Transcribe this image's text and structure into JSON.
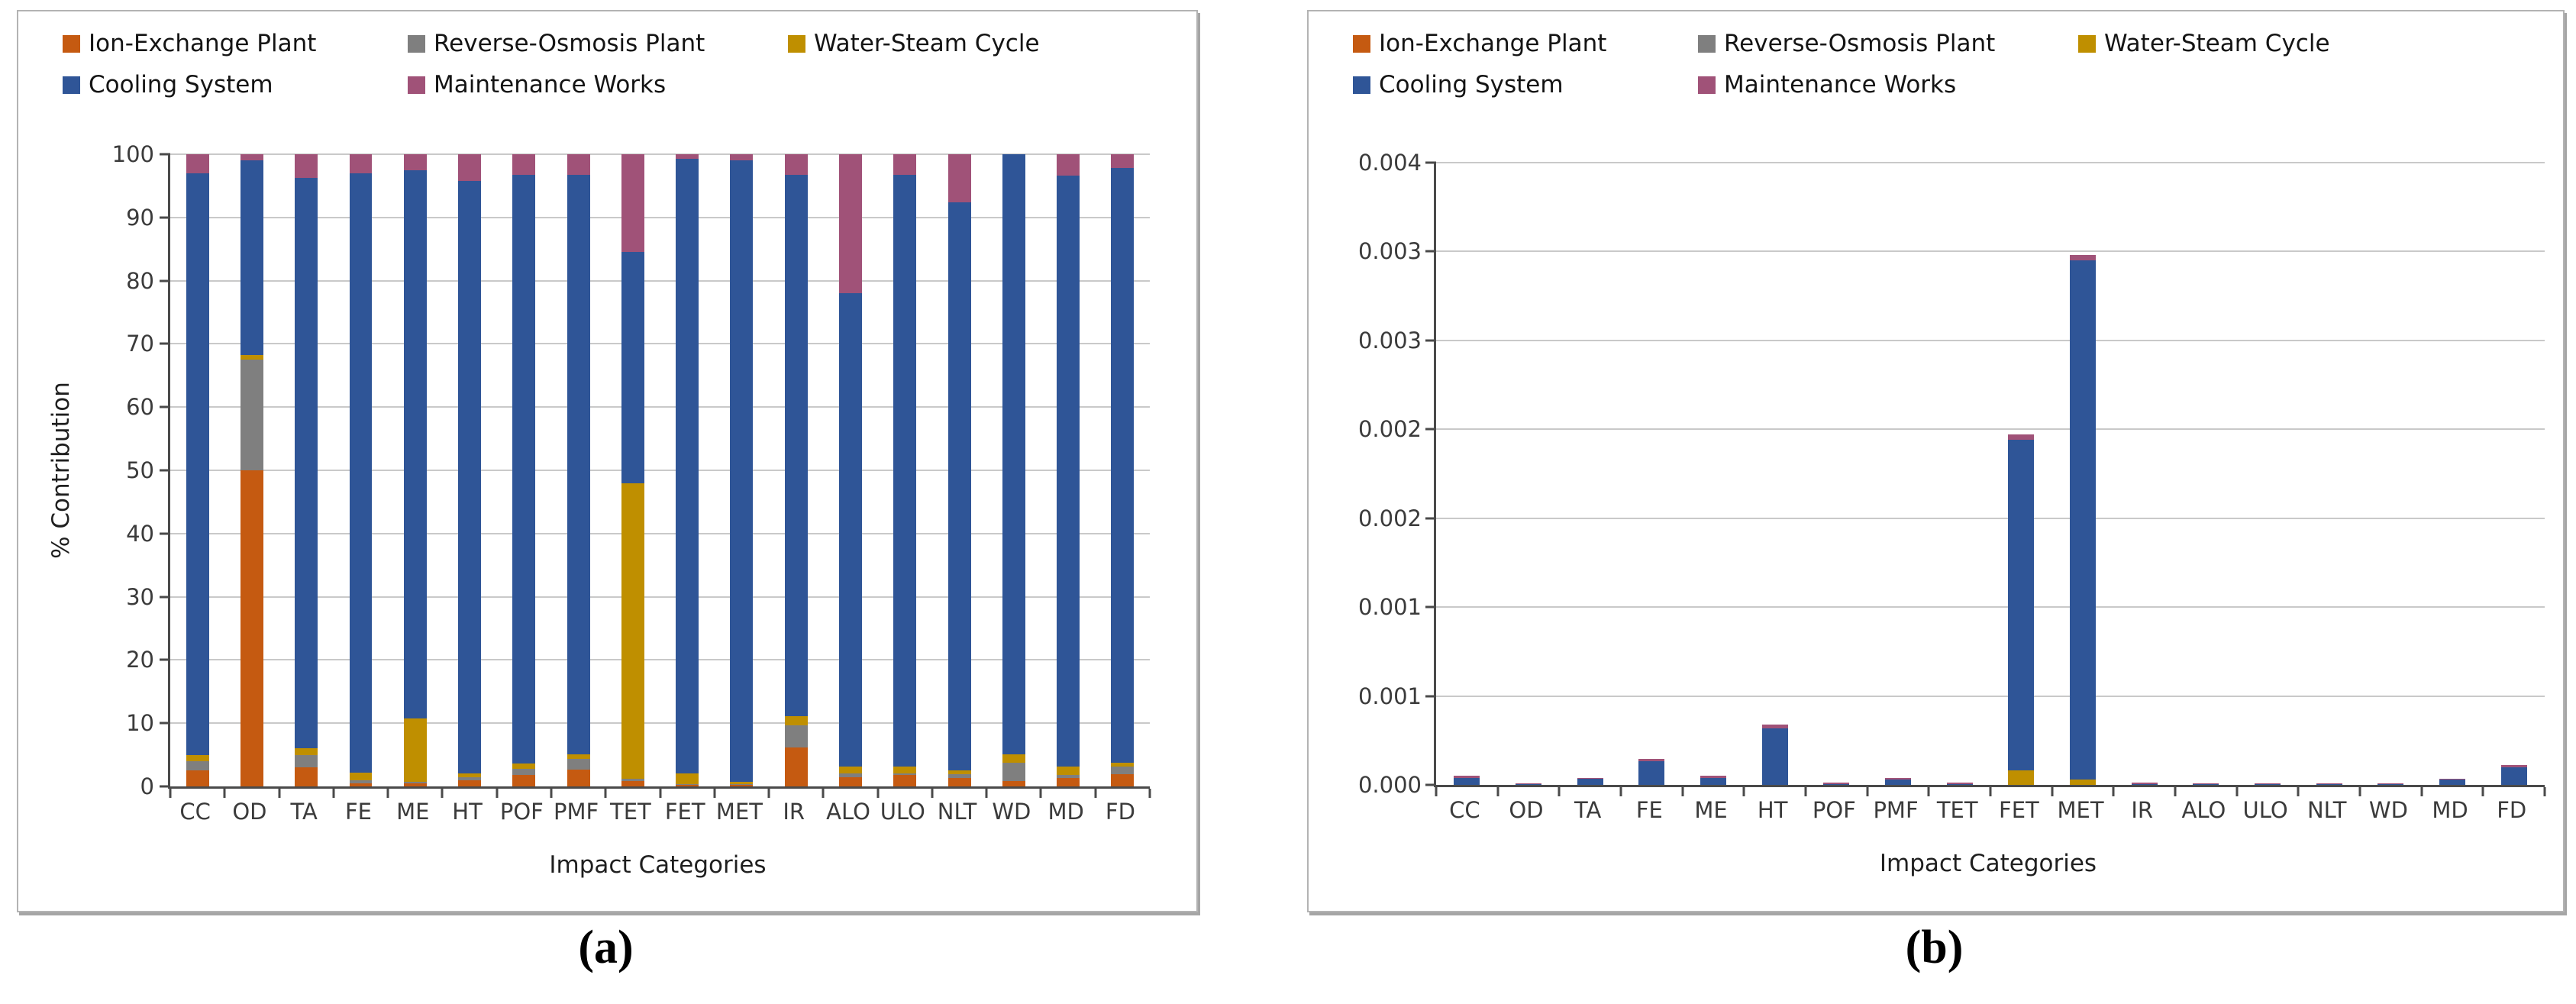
{
  "figure": {
    "captions": {
      "a": "(a)",
      "b": "(b)"
    },
    "colors": {
      "background": "#ffffff",
      "panel_border": "#b3b3b3",
      "axis": "#4a4a4a",
      "gridline": "#c9c9c9",
      "tick_text": "#3b3b3b"
    }
  },
  "chart_data": [
    {
      "id": "a",
      "type": "bar",
      "stacked": true,
      "percent_stacked": true,
      "title": "",
      "xlabel": "Impact Categories",
      "ylabel": "% Contribution",
      "ylim": [
        0,
        100
      ],
      "ytick_labels": [
        "0",
        "10",
        "20",
        "30",
        "40",
        "50",
        "60",
        "70",
        "80",
        "90",
        "100"
      ],
      "grid": true,
      "legend_position": "top-left",
      "categories": [
        "CC",
        "OD",
        "TA",
        "FE",
        "ME",
        "HT",
        "POF",
        "PMF",
        "TET",
        "FET",
        "MET",
        "IR",
        "ALO",
        "ULO",
        "NLT",
        "WD",
        "MD",
        "FD"
      ],
      "series": [
        {
          "name": "Ion-Exchange Plant",
          "color": "#C55A11",
          "values": [
            2.5,
            50,
            3,
            0.5,
            0.5,
            1,
            1.8,
            2.7,
            0.9,
            0.3,
            0.2,
            6.2,
            1.4,
            1.8,
            1.3,
            0.8,
            1.3,
            1.9
          ]
        },
        {
          "name": "Reverse-Osmosis Plant",
          "color": "#7F7F7F",
          "values": [
            1.5,
            17.5,
            2,
            0.5,
            0.2,
            0.5,
            1,
            1.7,
            0.3,
            0.1,
            0.1,
            3.5,
            0.6,
            0.3,
            0.6,
            3,
            0.5,
            1.3
          ]
        },
        {
          "name": "Water-Steam Cycle",
          "color": "#BF8F00",
          "values": [
            1,
            0.8,
            1,
            1.2,
            10,
            0.6,
            0.8,
            0.7,
            46.8,
            1.6,
            0.4,
            1.4,
            1.1,
            1,
            0.7,
            1.3,
            1.3,
            0.6
          ]
        },
        {
          "name": "Cooling System",
          "color": "#2F5597",
          "values": [
            92,
            30.7,
            90.3,
            94.8,
            86.8,
            93.7,
            93.2,
            91.6,
            36.5,
            97.3,
            98.3,
            85.7,
            74.9,
            93.7,
            89.8,
            94.9,
            93.5,
            94
          ]
        },
        {
          "name": "Maintenance Works",
          "color": "#A05278",
          "values": [
            3,
            1,
            3.7,
            3,
            2.5,
            4.2,
            3.2,
            3.3,
            15.5,
            0.7,
            1,
            3.2,
            22,
            3.2,
            7.6,
            0,
            3.4,
            2.2
          ]
        }
      ]
    },
    {
      "id": "b",
      "type": "bar",
      "stacked": true,
      "percent_stacked": false,
      "title": "",
      "xlabel": "Impact Categories",
      "ylabel": "",
      "ylim": [
        0,
        0.0035
      ],
      "ytick_labels": [
        "0.000",
        "0.001",
        "0.001",
        "0.002",
        "0.002",
        "0.003",
        "0.003",
        "0.004"
      ],
      "grid": true,
      "legend_position": "top-left",
      "categories": [
        "CC",
        "OD",
        "TA",
        "FE",
        "ME",
        "HT",
        "POF",
        "PMF",
        "TET",
        "FET",
        "MET",
        "IR",
        "ALO",
        "ULO",
        "NLT",
        "WD",
        "MD",
        "FD"
      ],
      "series": [
        {
          "name": "Ion-Exchange Plant",
          "color": "#C55A11",
          "values": [
            0,
            0,
            0,
            0,
            0,
            0,
            0,
            0,
            0,
            0,
            0,
            0,
            0,
            0,
            0,
            0,
            0,
            0
          ]
        },
        {
          "name": "Reverse-Osmosis Plant",
          "color": "#7F7F7F",
          "values": [
            0,
            0,
            0,
            0,
            0,
            0,
            0,
            0,
            0,
            0,
            0,
            0,
            0,
            0,
            0,
            0,
            0,
            0
          ]
        },
        {
          "name": "Water-Steam Cycle",
          "color": "#BF8F00",
          "values": [
            0,
            0,
            0,
            0,
            0,
            0,
            0,
            0,
            0,
            8e-05,
            3e-05,
            0,
            0,
            0,
            0,
            0,
            0,
            0
          ]
        },
        {
          "name": "Cooling System",
          "color": "#2F5597",
          "values": [
            4e-05,
            4e-06,
            3.5e-05,
            0.000135,
            4e-05,
            0.00032,
            5e-06,
            3e-05,
            3e-06,
            0.00186,
            0.00292,
            5e-06,
            3e-06,
            5e-06,
            5e-06,
            2e-06,
            3e-05,
            0.0001
          ]
        },
        {
          "name": "Maintenance Works",
          "color": "#A05278",
          "values": [
            1e-05,
            4e-06,
            5e-06,
            1e-05,
            1e-05,
            2e-05,
            1e-05,
            1e-05,
            7e-06,
            3e-05,
            3e-05,
            1e-05,
            5e-06,
            5e-06,
            5e-06,
            1e-06,
            5e-06,
            1e-05
          ]
        }
      ]
    }
  ]
}
